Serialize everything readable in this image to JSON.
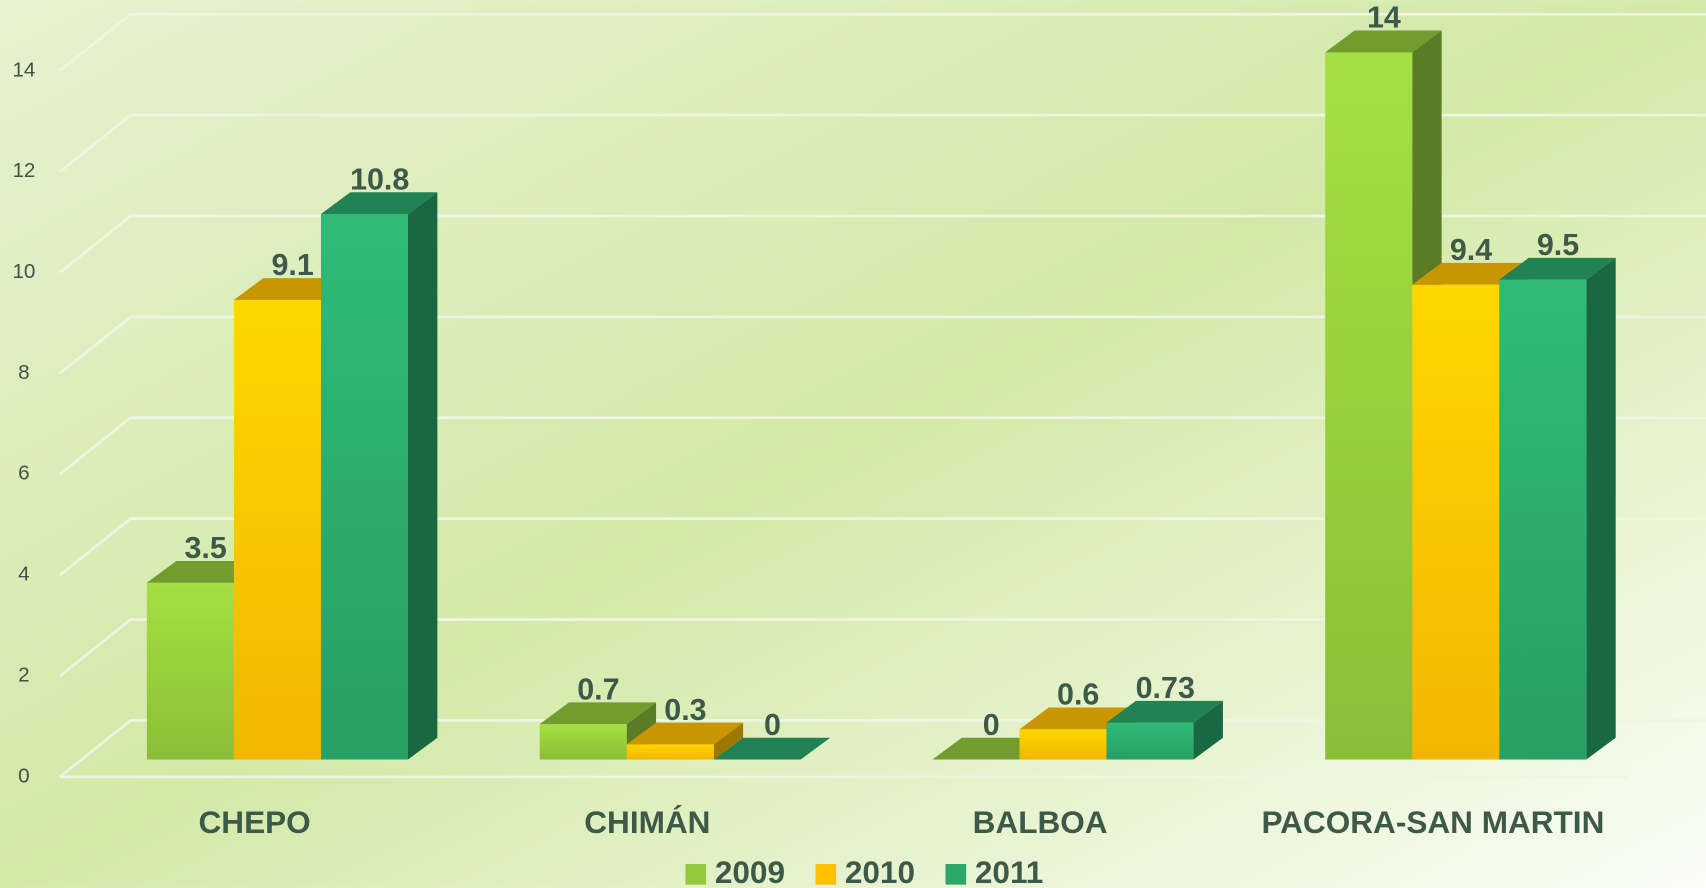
{
  "chart_data": {
    "type": "bar3d",
    "categories": [
      "CHEPO",
      "CHIMÁN",
      "BALBOA",
      "PACORA-SAN MARTIN"
    ],
    "series": [
      {
        "name": "2009",
        "color": "#92c83a",
        "values": [
          3.5,
          0.7,
          0,
          14
        ]
      },
      {
        "name": "2010",
        "color": "#ffc000",
        "values": [
          9.1,
          0.3,
          0.6,
          9.4
        ]
      },
      {
        "name": "2011",
        "color": "#2aa76a",
        "values": [
          10.8,
          0,
          0.73,
          9.5
        ]
      }
    ],
    "ylim": [
      0,
      14
    ],
    "yticks": [
      0,
      2,
      4,
      6,
      8,
      10,
      12,
      14
    ],
    "grid": true,
    "legend": "bottom"
  }
}
